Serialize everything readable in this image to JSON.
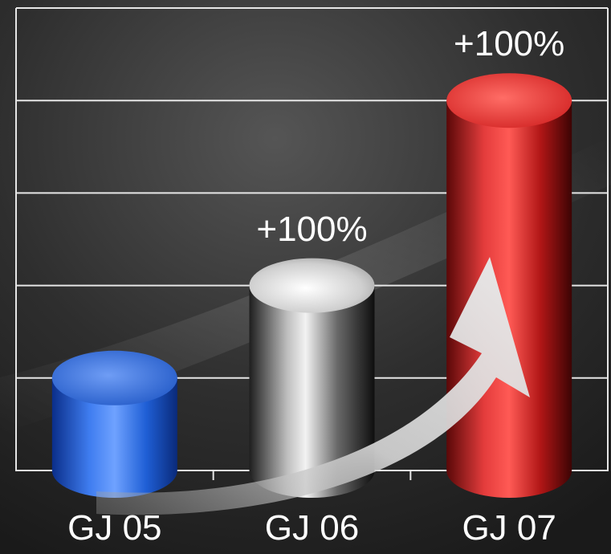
{
  "chart_data": {
    "type": "bar",
    "categories": [
      "GJ 05",
      "GJ 06",
      "GJ 07"
    ],
    "values": [
      1,
      2,
      4
    ],
    "data_labels": [
      "",
      "+100%",
      "+100%"
    ],
    "ylim": [
      0,
      5
    ],
    "grid": true,
    "title": "",
    "xlabel": "",
    "ylabel": "",
    "colors": {
      "background": "#2a2a2a",
      "grid": "#e6e6e6",
      "bars": [
        "#1f5fd6",
        "#c8c8c8",
        "#e0262a"
      ],
      "arrow": "#d9d9d9"
    }
  }
}
